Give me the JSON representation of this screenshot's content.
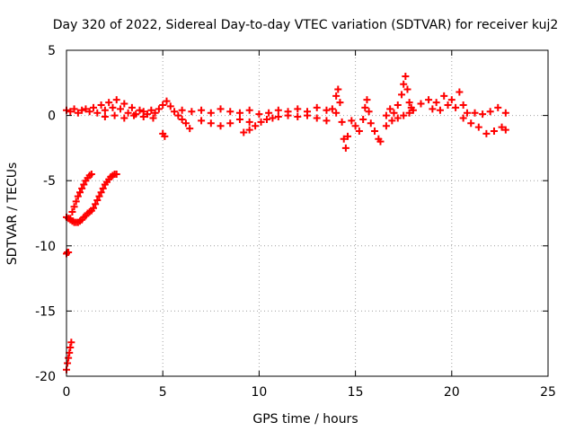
{
  "chart_data": {
    "type": "scatter",
    "title": "Day 320 of 2022, Sidereal Day-to-day VTEC variation (SDTVAR) for receiver kuj2",
    "xlabel": "GPS time / hours",
    "ylabel": "SDTVAR / TECUs",
    "xlim": [
      0,
      25
    ],
    "ylim": [
      -20,
      5
    ],
    "xticks": [
      0,
      5,
      10,
      15,
      20,
      25
    ],
    "yticks": [
      -20,
      -15,
      -10,
      -5,
      0,
      5
    ],
    "grid": true,
    "marker": "+",
    "colors": {
      "series": "#ff0000",
      "grid": "#a0a0a0",
      "axis": "#000000"
    },
    "series": [
      {
        "color": "#ff0000",
        "points": [
          [
            0.0,
            -19.5
          ],
          [
            0.05,
            -19.0
          ],
          [
            0.1,
            -18.6
          ],
          [
            0.15,
            -18.2
          ],
          [
            0.2,
            -17.8
          ],
          [
            0.25,
            -17.4
          ],
          [
            0.0,
            -10.6
          ],
          [
            0.05,
            -10.5
          ],
          [
            0.1,
            -10.5
          ],
          [
            0.0,
            -7.8
          ],
          [
            0.1,
            -7.9
          ],
          [
            0.2,
            -8.0
          ],
          [
            0.3,
            -7.4
          ],
          [
            0.4,
            -7.0
          ],
          [
            0.5,
            -6.6
          ],
          [
            0.6,
            -6.2
          ],
          [
            0.7,
            -5.9
          ],
          [
            0.8,
            -5.6
          ],
          [
            0.9,
            -5.3
          ],
          [
            1.0,
            -5.0
          ],
          [
            1.1,
            -4.8
          ],
          [
            1.2,
            -4.6
          ],
          [
            1.3,
            -4.5
          ],
          [
            0.2,
            -7.9
          ],
          [
            0.3,
            -8.1
          ],
          [
            0.4,
            -8.2
          ],
          [
            0.5,
            -8.2
          ],
          [
            0.6,
            -8.2
          ],
          [
            0.7,
            -8.1
          ],
          [
            0.8,
            -8.0
          ],
          [
            0.9,
            -7.8
          ],
          [
            1.0,
            -7.7
          ],
          [
            1.1,
            -7.5
          ],
          [
            1.2,
            -7.4
          ],
          [
            1.3,
            -7.3
          ],
          [
            1.4,
            -7.1
          ],
          [
            1.5,
            -6.8
          ],
          [
            1.6,
            -6.5
          ],
          [
            1.7,
            -6.2
          ],
          [
            1.8,
            -5.9
          ],
          [
            1.9,
            -5.6
          ],
          [
            2.0,
            -5.3
          ],
          [
            2.1,
            -5.1
          ],
          [
            2.2,
            -4.9
          ],
          [
            2.3,
            -4.7
          ],
          [
            2.4,
            -4.6
          ],
          [
            2.5,
            -4.5
          ],
          [
            2.6,
            -4.5
          ],
          [
            0.0,
            0.4
          ],
          [
            0.2,
            0.3
          ],
          [
            0.4,
            0.5
          ],
          [
            0.6,
            0.2
          ],
          [
            0.8,
            0.4
          ],
          [
            1.0,
            0.5
          ],
          [
            1.2,
            0.3
          ],
          [
            1.4,
            0.6
          ],
          [
            1.6,
            0.2
          ],
          [
            1.8,
            0.8
          ],
          [
            2.0,
            0.4
          ],
          [
            2.2,
            1.0
          ],
          [
            2.4,
            0.6
          ],
          [
            2.6,
            1.2
          ],
          [
            2.8,
            0.5
          ],
          [
            3.0,
            0.9
          ],
          [
            3.2,
            0.2
          ],
          [
            3.4,
            0.6
          ],
          [
            3.6,
            0.1
          ],
          [
            3.8,
            0.4
          ],
          [
            4.0,
            0.3
          ],
          [
            4.2,
            0.1
          ],
          [
            4.4,
            0.4
          ],
          [
            4.6,
            0.2
          ],
          [
            4.8,
            0.5
          ],
          [
            2.0,
            -0.1
          ],
          [
            2.5,
            0.0
          ],
          [
            3.0,
            -0.2
          ],
          [
            3.5,
            0.0
          ],
          [
            4.0,
            -0.1
          ],
          [
            4.5,
            -0.2
          ],
          [
            5.0,
            -1.4
          ],
          [
            5.1,
            -1.6
          ],
          [
            5.0,
            0.8
          ],
          [
            5.2,
            1.1
          ],
          [
            5.4,
            0.7
          ],
          [
            5.6,
            0.3
          ],
          [
            5.8,
            0.0
          ],
          [
            6.0,
            -0.3
          ],
          [
            6.2,
            -0.6
          ],
          [
            6.4,
            -1.0
          ],
          [
            6.0,
            0.4
          ],
          [
            6.5,
            0.3
          ],
          [
            7.0,
            0.4
          ],
          [
            7.5,
            0.2
          ],
          [
            8.0,
            0.5
          ],
          [
            8.5,
            0.3
          ],
          [
            9.0,
            0.2
          ],
          [
            9.5,
            0.4
          ],
          [
            7.0,
            -0.4
          ],
          [
            7.5,
            -0.6
          ],
          [
            8.0,
            -0.8
          ],
          [
            8.5,
            -0.6
          ],
          [
            9.0,
            -0.3
          ],
          [
            9.5,
            -0.5
          ],
          [
            10.0,
            0.1
          ],
          [
            10.5,
            0.2
          ],
          [
            11.0,
            0.4
          ],
          [
            11.5,
            0.3
          ],
          [
            12.0,
            0.5
          ],
          [
            12.5,
            0.3
          ],
          [
            13.0,
            0.6
          ],
          [
            13.5,
            0.4
          ],
          [
            14.0,
            0.2
          ],
          [
            9.2,
            -1.3
          ],
          [
            9.5,
            -1.1
          ],
          [
            9.8,
            -0.8
          ],
          [
            10.1,
            -0.5
          ],
          [
            10.4,
            -0.3
          ],
          [
            10.7,
            -0.2
          ],
          [
            11.0,
            -0.1
          ],
          [
            11.5,
            0.0
          ],
          [
            12.0,
            -0.1
          ],
          [
            12.5,
            0.0
          ],
          [
            13.0,
            -0.2
          ],
          [
            13.5,
            -0.4
          ],
          [
            13.8,
            0.5
          ],
          [
            14.0,
            1.5
          ],
          [
            14.1,
            2.0
          ],
          [
            14.2,
            1.0
          ],
          [
            14.3,
            -0.5
          ],
          [
            14.4,
            -1.8
          ],
          [
            14.5,
            -2.5
          ],
          [
            14.6,
            -1.6
          ],
          [
            14.8,
            -0.4
          ],
          [
            15.0,
            -0.8
          ],
          [
            15.2,
            -1.2
          ],
          [
            15.4,
            -0.3
          ],
          [
            15.5,
            0.6
          ],
          [
            15.6,
            1.2
          ],
          [
            15.7,
            0.3
          ],
          [
            15.8,
            -0.6
          ],
          [
            16.0,
            -1.2
          ],
          [
            16.2,
            -1.8
          ],
          [
            16.3,
            -2.0
          ],
          [
            16.6,
            0.0
          ],
          [
            16.8,
            0.5
          ],
          [
            17.0,
            0.2
          ],
          [
            17.2,
            0.8
          ],
          [
            17.4,
            1.6
          ],
          [
            17.5,
            2.4
          ],
          [
            17.6,
            3.0
          ],
          [
            17.7,
            2.0
          ],
          [
            17.8,
            1.0
          ],
          [
            17.9,
            0.6
          ],
          [
            16.6,
            -0.8
          ],
          [
            16.9,
            -0.4
          ],
          [
            17.2,
            -0.2
          ],
          [
            17.5,
            0.0
          ],
          [
            17.8,
            0.2
          ],
          [
            18.0,
            0.4
          ],
          [
            18.4,
            0.9
          ],
          [
            18.8,
            1.2
          ],
          [
            19.2,
            1.0
          ],
          [
            19.6,
            1.5
          ],
          [
            20.0,
            1.2
          ],
          [
            20.4,
            1.8
          ],
          [
            20.6,
            0.8
          ],
          [
            20.8,
            0.2
          ],
          [
            21.2,
            0.2
          ],
          [
            21.6,
            0.1
          ],
          [
            22.0,
            0.3
          ],
          [
            22.4,
            0.6
          ],
          [
            22.8,
            0.2
          ],
          [
            19.0,
            0.5
          ],
          [
            19.4,
            0.4
          ],
          [
            19.8,
            0.8
          ],
          [
            20.2,
            0.6
          ],
          [
            20.6,
            -0.2
          ],
          [
            21.0,
            -0.6
          ],
          [
            21.4,
            -0.9
          ],
          [
            21.8,
            -1.4
          ],
          [
            22.2,
            -1.2
          ],
          [
            22.6,
            -0.9
          ],
          [
            22.8,
            -1.1
          ]
        ]
      }
    ]
  }
}
